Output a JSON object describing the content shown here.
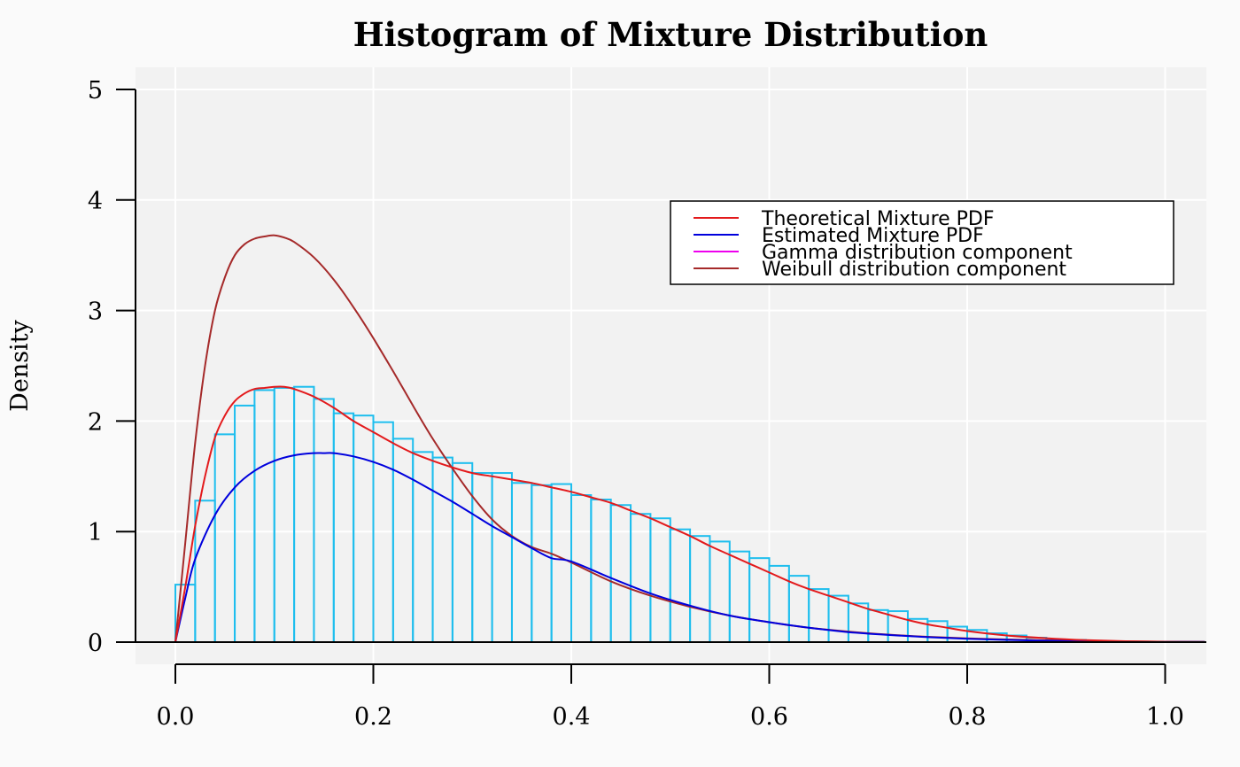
{
  "chart_data": {
    "type": "histogram",
    "title": "Histogram of Mixture Distribution",
    "xlabel": "",
    "ylabel": "Density",
    "xlim": [
      -0.02,
      1.04
    ],
    "ylim": [
      0,
      5
    ],
    "x_ticks": [
      "0.0",
      "0.2",
      "0.4",
      "0.6",
      "0.8",
      "1.0"
    ],
    "y_ticks": [
      "0",
      "1",
      "2",
      "3",
      "4",
      "5"
    ],
    "grid": true,
    "legend_position": "top-right",
    "colors": {
      "histogram": "#1ebeee",
      "theoretical": "#e31a1c",
      "estimated": "#0000dd",
      "gamma": "#ee00ee",
      "weibull": "#a52a2a",
      "panel_bg": "#f2f2f2",
      "grid": "#ffffff"
    },
    "histogram": {
      "bin_width": 0.02,
      "bin_start": 0.0,
      "densities": [
        0.52,
        1.28,
        1.88,
        2.14,
        2.28,
        2.3,
        2.31,
        2.2,
        2.07,
        2.05,
        1.99,
        1.84,
        1.72,
        1.67,
        1.62,
        1.53,
        1.53,
        1.44,
        1.42,
        1.43,
        1.33,
        1.29,
        1.24,
        1.16,
        1.12,
        1.02,
        0.96,
        0.91,
        0.82,
        0.76,
        0.69,
        0.6,
        0.48,
        0.42,
        0.35,
        0.29,
        0.28,
        0.21,
        0.19,
        0.14,
        0.11,
        0.08,
        0.06,
        0.04,
        0.02,
        0.02,
        0.01
      ]
    },
    "series": [
      {
        "name": "Theoretical Mixture PDF",
        "x": [
          0.0,
          0.01,
          0.02,
          0.03,
          0.04,
          0.05,
          0.06,
          0.07,
          0.08,
          0.09,
          0.1,
          0.11,
          0.12,
          0.14,
          0.16,
          0.18,
          0.2,
          0.22,
          0.24,
          0.26,
          0.28,
          0.3,
          0.32,
          0.34,
          0.36,
          0.38,
          0.4,
          0.42,
          0.44,
          0.46,
          0.48,
          0.5,
          0.52,
          0.54,
          0.56,
          0.58,
          0.6,
          0.62,
          0.64,
          0.66,
          0.68,
          0.7,
          0.72,
          0.74,
          0.76,
          0.78,
          0.8,
          0.84,
          0.88,
          0.92,
          0.96,
          1.0,
          1.04
        ],
        "y": [
          0.0,
          0.5,
          1.05,
          1.5,
          1.85,
          2.05,
          2.18,
          2.25,
          2.29,
          2.3,
          2.31,
          2.31,
          2.29,
          2.22,
          2.12,
          2.0,
          1.9,
          1.8,
          1.71,
          1.64,
          1.58,
          1.53,
          1.5,
          1.47,
          1.44,
          1.4,
          1.36,
          1.31,
          1.26,
          1.19,
          1.12,
          1.04,
          0.96,
          0.87,
          0.79,
          0.71,
          0.63,
          0.55,
          0.48,
          0.42,
          0.36,
          0.3,
          0.25,
          0.2,
          0.16,
          0.13,
          0.1,
          0.06,
          0.035,
          0.018,
          0.008,
          0.003,
          0.001
        ]
      },
      {
        "name": "Estimated Mixture PDF",
        "x": [
          0.0,
          0.01,
          0.02,
          0.04,
          0.06,
          0.08,
          0.1,
          0.12,
          0.14,
          0.15,
          0.16,
          0.18,
          0.2,
          0.22,
          0.24,
          0.26,
          0.28,
          0.3,
          0.32,
          0.34,
          0.36,
          0.38,
          0.4,
          0.44,
          0.48,
          0.52,
          0.56,
          0.6,
          0.64,
          0.68,
          0.72,
          0.76,
          0.8,
          0.84,
          0.88,
          0.92,
          0.96,
          1.0,
          1.04
        ],
        "y": [
          0.0,
          0.4,
          0.75,
          1.15,
          1.4,
          1.55,
          1.64,
          1.69,
          1.71,
          1.71,
          1.71,
          1.68,
          1.63,
          1.56,
          1.47,
          1.37,
          1.27,
          1.16,
          1.05,
          0.95,
          0.85,
          0.76,
          0.73,
          0.58,
          0.44,
          0.33,
          0.24,
          0.18,
          0.13,
          0.09,
          0.065,
          0.045,
          0.03,
          0.02,
          0.013,
          0.008,
          0.005,
          0.003,
          0.002
        ]
      },
      {
        "name": "Gamma distribution component",
        "x": [
          0.0,
          1.04
        ],
        "y": [
          0.0,
          0.0
        ]
      },
      {
        "name": "Weibull distribution component",
        "x": [
          0.0,
          0.01,
          0.02,
          0.03,
          0.04,
          0.05,
          0.06,
          0.07,
          0.08,
          0.09,
          0.1,
          0.11,
          0.12,
          0.14,
          0.16,
          0.18,
          0.2,
          0.22,
          0.24,
          0.26,
          0.28,
          0.3,
          0.32,
          0.34,
          0.36,
          0.38,
          0.4,
          0.44,
          0.48,
          0.52,
          0.56,
          0.6,
          0.64,
          0.68,
          0.72,
          0.76,
          0.8,
          0.84,
          0.88,
          0.92,
          0.96,
          1.0,
          1.04
        ],
        "y": [
          0.0,
          0.9,
          1.8,
          2.5,
          3.0,
          3.3,
          3.5,
          3.6,
          3.65,
          3.67,
          3.68,
          3.66,
          3.62,
          3.48,
          3.28,
          3.03,
          2.75,
          2.45,
          2.14,
          1.84,
          1.57,
          1.32,
          1.11,
          0.96,
          0.86,
          0.8,
          0.72,
          0.55,
          0.42,
          0.32,
          0.24,
          0.18,
          0.13,
          0.095,
          0.068,
          0.048,
          0.034,
          0.024,
          0.016,
          0.011,
          0.007,
          0.004,
          0.002
        ]
      }
    ]
  }
}
